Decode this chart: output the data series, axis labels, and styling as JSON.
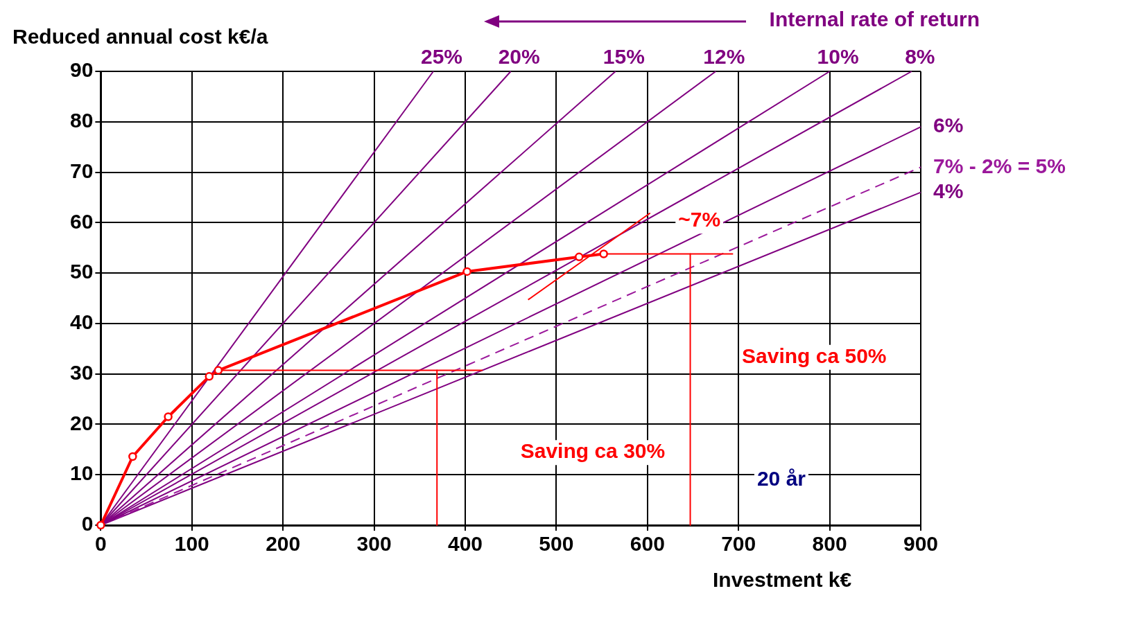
{
  "chart_data": {
    "type": "line",
    "xlabel": "Investment k€",
    "ylabel": "Reduced annual cost k€/a",
    "xlim": [
      0,
      900
    ],
    "xticks": [
      0,
      100,
      200,
      300,
      400,
      500,
      600,
      700,
      800,
      900
    ],
    "ylim": [
      0,
      90
    ],
    "yticks": [
      0,
      10,
      20,
      30,
      40,
      50,
      60,
      70,
      80,
      90
    ],
    "grid": true,
    "legend": "top",
    "series": [
      {
        "color": "#ff0000",
        "marker": "circle",
        "x": [
          0,
          35,
          74,
          119,
          129,
          402,
          525,
          552
        ],
        "values": [
          0,
          13.6,
          21.5,
          29.5,
          30.7,
          50.3,
          53.2,
          53.8
        ]
      },
      {
        "color": "#ff0000",
        "marker": "none",
        "x": [
          129,
          419
        ],
        "values": [
          30.7,
          30.7
        ]
      },
      {
        "color": "#ff0000",
        "marker": "none",
        "x": [
          369,
          369
        ],
        "values": [
          30.7,
          0
        ]
      },
      {
        "color": "#ff0000",
        "marker": "none",
        "x": [
          552,
          694
        ],
        "values": [
          53.8,
          53.8
        ]
      },
      {
        "color": "#ff0000",
        "marker": "none",
        "x": [
          647,
          647
        ],
        "values": [
          53.8,
          0
        ]
      },
      {
        "color": "#ff0000",
        "marker": "none",
        "x": [
          469,
          603
        ],
        "values": [
          44.7,
          61.9
        ]
      },
      {
        "name": "25%",
        "color": "#800080",
        "marker": "none",
        "x": [
          0,
          365
        ],
        "values": [
          0,
          90
        ]
      },
      {
        "name": "20%",
        "color": "#800080",
        "marker": "none",
        "x": [
          0,
          450
        ],
        "values": [
          0,
          90
        ]
      },
      {
        "name": "15%",
        "color": "#800080",
        "marker": "none",
        "x": [
          0,
          565
        ],
        "values": [
          0,
          90
        ]
      },
      {
        "name": "12%",
        "color": "#800080",
        "marker": "none",
        "x": [
          0,
          675
        ],
        "values": [
          0,
          90
        ]
      },
      {
        "name": "10%",
        "color": "#800080",
        "marker": "none",
        "x": [
          0,
          800
        ],
        "values": [
          0,
          90
        ]
      },
      {
        "name": "8%",
        "color": "#800080",
        "marker": "none",
        "x": [
          0,
          890
        ],
        "values": [
          0,
          90
        ]
      },
      {
        "name": "6%",
        "color": "#800080",
        "marker": "none",
        "x": [
          0,
          900
        ],
        "values": [
          0,
          79
        ]
      },
      {
        "name": "7% - 2% = 5%",
        "color": "#9b189b",
        "marker": "none",
        "line_style": "dashed",
        "x": [
          0,
          900
        ],
        "values": [
          0,
          71
        ]
      },
      {
        "name": "4%",
        "color": "#800080",
        "marker": "none",
        "x": [
          0,
          900
        ],
        "values": [
          0,
          66
        ]
      }
    ],
    "annotations": [
      "Internal rate of return",
      "~7%",
      "Saving ca 30%",
      "Saving ca 50%",
      "20 år"
    ]
  }
}
